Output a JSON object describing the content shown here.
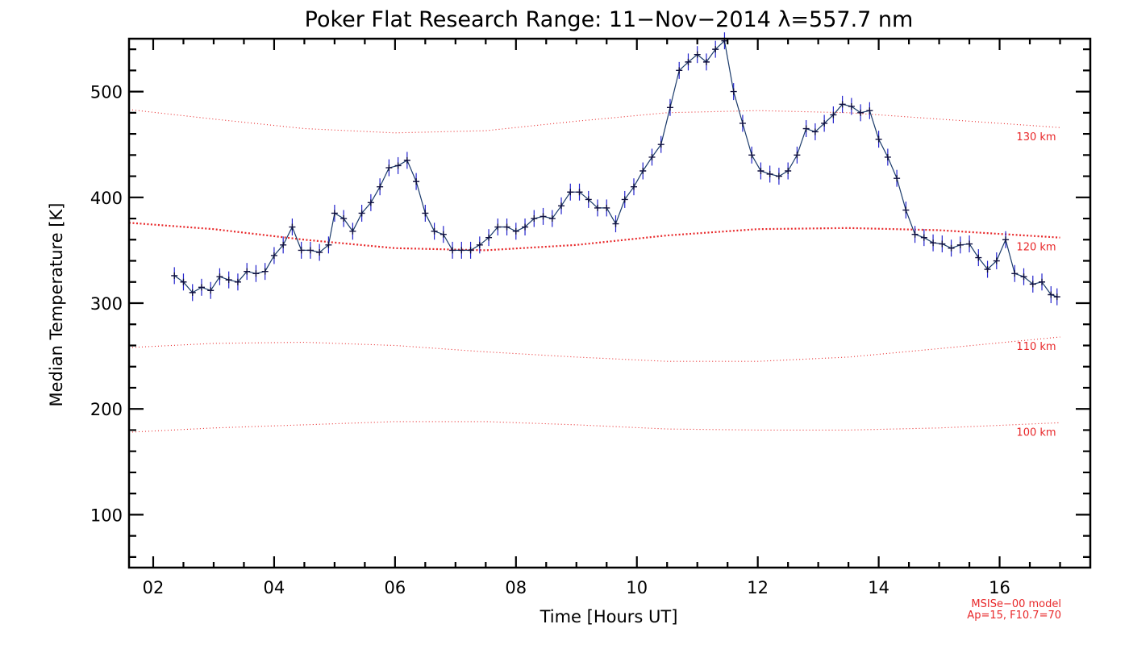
{
  "chart_data": {
    "type": "line",
    "title": "Poker Flat Research Range: 11−Nov−2014 λ=557.7 nm",
    "xlabel": "Time [Hours UT]",
    "ylabel": "Median Temperature [K]",
    "xlim": [
      1.6,
      17.5
    ],
    "ylim": [
      50,
      550
    ],
    "x_ticks": [
      2,
      4,
      6,
      8,
      10,
      12,
      14,
      16
    ],
    "x_tick_labels": [
      "02",
      "04",
      "06",
      "08",
      "10",
      "12",
      "14",
      "16"
    ],
    "y_ticks": [
      100,
      200,
      300,
      400,
      500
    ],
    "y_tick_labels": [
      "100",
      "200",
      "300",
      "400",
      "500"
    ],
    "grid": false,
    "series": [
      {
        "role": "measured",
        "color": "#101040",
        "error_color": "#2222cc",
        "x": [
          2.35,
          2.5,
          2.65,
          2.8,
          2.95,
          3.1,
          3.25,
          3.4,
          3.55,
          3.7,
          3.85,
          4.0,
          4.15,
          4.3,
          4.45,
          4.6,
          4.75,
          4.9,
          5.0,
          5.15,
          5.3,
          5.45,
          5.6,
          5.75,
          5.9,
          6.05,
          6.2,
          6.35,
          6.5,
          6.65,
          6.8,
          6.95,
          7.1,
          7.25,
          7.4,
          7.55,
          7.7,
          7.85,
          8.0,
          8.15,
          8.3,
          8.45,
          8.6,
          8.75,
          8.9,
          9.05,
          9.2,
          9.35,
          9.5,
          9.65,
          9.8,
          9.95,
          10.1,
          10.25,
          10.4,
          10.55,
          10.7,
          10.85,
          11.0,
          11.15,
          11.3,
          11.45,
          11.6,
          11.75,
          11.9,
          12.05,
          12.2,
          12.35,
          12.5,
          12.65,
          12.8,
          12.95,
          13.1,
          13.25,
          13.4,
          13.55,
          13.7,
          13.85,
          14.0,
          14.15,
          14.3,
          14.45,
          14.6,
          14.75,
          14.9,
          15.05,
          15.2,
          15.35,
          15.5,
          15.65,
          15.8,
          15.95,
          16.1,
          16.25,
          16.4,
          16.55,
          16.7,
          16.85,
          16.95
        ],
        "y": [
          326,
          320,
          310,
          315,
          312,
          325,
          322,
          320,
          330,
          328,
          330,
          345,
          355,
          372,
          350,
          350,
          348,
          355,
          385,
          380,
          368,
          385,
          395,
          410,
          428,
          430,
          435,
          415,
          385,
          368,
          365,
          350,
          350,
          350,
          355,
          362,
          372,
          372,
          368,
          372,
          380,
          382,
          380,
          392,
          405,
          405,
          398,
          390,
          390,
          375,
          398,
          410,
          425,
          438,
          450,
          485,
          520,
          528,
          535,
          528,
          540,
          548,
          500,
          470,
          440,
          425,
          422,
          420,
          425,
          440,
          465,
          462,
          470,
          478,
          488,
          486,
          480,
          482,
          455,
          438,
          418,
          388,
          365,
          362,
          357,
          356,
          352,
          355,
          356,
          343,
          332,
          340,
          360,
          328,
          325,
          318,
          320,
          308,
          306
        ],
        "error": 8
      },
      {
        "name": "100 km",
        "color": "#e8282a",
        "x": [
          1.6,
          3,
          4.5,
          6,
          7.5,
          9,
          10.5,
          12,
          13.5,
          15,
          17
        ],
        "y": [
          178,
          182,
          185,
          188,
          188,
          185,
          181,
          180,
          180,
          182,
          187
        ]
      },
      {
        "name": "110 km",
        "color": "#e8282a",
        "x": [
          1.6,
          3,
          4.5,
          6,
          7.5,
          9,
          10.5,
          12,
          13.5,
          15,
          17
        ],
        "y": [
          258,
          262,
          263,
          260,
          254,
          249,
          245,
          245,
          249,
          257,
          268
        ]
      },
      {
        "name": "120 km",
        "color": "#e8282a",
        "bold": true,
        "x": [
          1.6,
          3,
          4.5,
          6,
          7.5,
          9,
          10.5,
          12,
          13.5,
          15,
          17
        ],
        "y": [
          376,
          370,
          360,
          352,
          350,
          355,
          364,
          370,
          371,
          369,
          362
        ]
      },
      {
        "name": "130 km",
        "color": "#e8282a",
        "x": [
          1.6,
          3,
          4.5,
          6,
          7.5,
          9,
          10.5,
          12,
          13.5,
          15,
          17
        ],
        "y": [
          483,
          474,
          465,
          461,
          463,
          472,
          480,
          482,
          480,
          474,
          466
        ]
      }
    ],
    "note_lines": [
      "MSISe−00 model",
      "Ap=15, F10.7=70"
    ]
  }
}
